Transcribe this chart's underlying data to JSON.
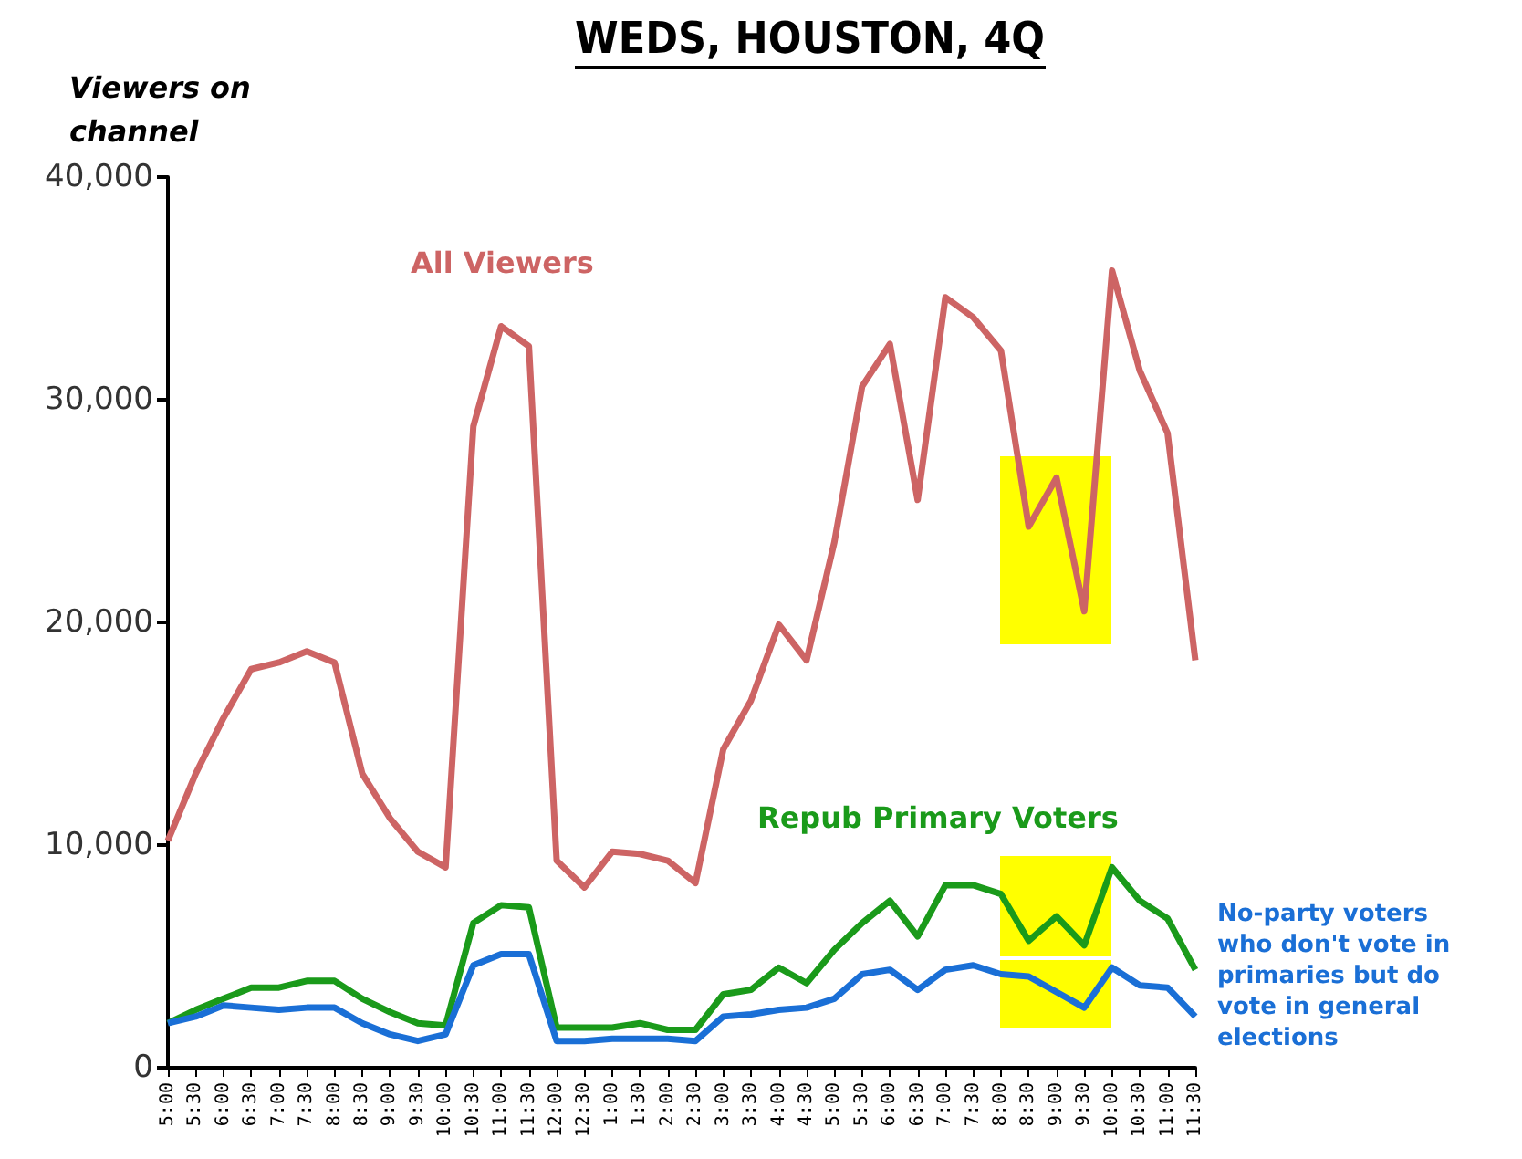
{
  "chart_data": {
    "type": "line",
    "title": "WEDS, HOUSTON, 4Q",
    "ylabel": "Viewers on channel",
    "categories": [
      "5:00",
      "5:30",
      "6:00",
      "6:30",
      "7:00",
      "7:30",
      "8:00",
      "8:30",
      "9:00",
      "9:30",
      "10:00",
      "10:30",
      "11:00",
      "11:30",
      "12:00",
      "12:30",
      "1:00",
      "1:30",
      "2:00",
      "2:30",
      "3:00",
      "3:30",
      "4:00",
      "4:30",
      "5:00",
      "5:30",
      "6:00",
      "6:30",
      "7:00",
      "7:30",
      "8:00",
      "8:30",
      "9:00",
      "9:30",
      "10:00",
      "10:30",
      "11:00",
      "11:30"
    ],
    "series": [
      {
        "name": "All Viewers",
        "color": "#cd6464",
        "values": [
          10200,
          13200,
          15700,
          17900,
          18200,
          18700,
          18200,
          13200,
          11200,
          9700,
          9000,
          28800,
          33300,
          32400,
          9300,
          8100,
          9700,
          9600,
          9300,
          8300,
          14300,
          16500,
          19900,
          18300,
          23600,
          30600,
          32500,
          25500,
          34600,
          33700,
          32200,
          24300,
          26500,
          20500,
          35800,
          31300,
          28500,
          18300
        ]
      },
      {
        "name": "Repub Primary Voters",
        "color": "#1a9a1a",
        "values": [
          2000,
          2600,
          3100,
          3600,
          3600,
          3900,
          3900,
          3100,
          2500,
          2000,
          1900,
          6500,
          7300,
          7200,
          1800,
          1800,
          1800,
          2000,
          1700,
          1700,
          3300,
          3500,
          4500,
          3800,
          5300,
          6500,
          7500,
          5900,
          8200,
          8200,
          7800,
          5700,
          6800,
          5500,
          9000,
          7500,
          6700,
          4400
        ]
      },
      {
        "name": "No-party voters who don't vote in primaries but do vote in general elections",
        "color": "#1a6fd6",
        "values": [
          2000,
          2300,
          2800,
          2700,
          2600,
          2700,
          2700,
          2000,
          1500,
          1200,
          1500,
          4600,
          5100,
          5100,
          1200,
          1200,
          1300,
          1300,
          1300,
          1200,
          2300,
          2400,
          2600,
          2700,
          3100,
          4200,
          4400,
          3500,
          4400,
          4600,
          4200,
          4100,
          3400,
          2700,
          4500,
          3700,
          3600,
          2300
        ]
      }
    ],
    "ylim": [
      0,
      40000
    ],
    "yticks": [
      0,
      {
        "value": 10000,
        "label": "10,000"
      },
      {
        "value": 20000,
        "label": "20,000"
      },
      {
        "value": 30000,
        "label": "30,000"
      },
      {
        "value": 40000,
        "label": "40,000"
      }
    ],
    "grid": false,
    "legend": false,
    "marker": "none",
    "line_style": "solid"
  }
}
